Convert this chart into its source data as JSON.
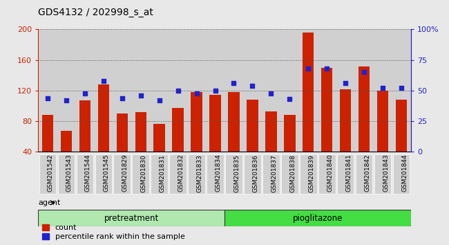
{
  "title": "GDS4132 / 202998_s_at",
  "samples": [
    "GSM201542",
    "GSM201543",
    "GSM201544",
    "GSM201545",
    "GSM201829",
    "GSM201830",
    "GSM201831",
    "GSM201832",
    "GSM201833",
    "GSM201834",
    "GSM201835",
    "GSM201836",
    "GSM201837",
    "GSM201838",
    "GSM201839",
    "GSM201840",
    "GSM201841",
    "GSM201842",
    "GSM201843",
    "GSM201844"
  ],
  "counts": [
    88,
    68,
    107,
    128,
    90,
    92,
    77,
    97,
    118,
    115,
    118,
    108,
    93,
    88,
    196,
    150,
    122,
    152,
    120,
    108
  ],
  "percentile": [
    44,
    42,
    48,
    58,
    44,
    46,
    42,
    50,
    48,
    50,
    56,
    54,
    48,
    43,
    68,
    68,
    56,
    65,
    52,
    52
  ],
  "pretreatment_count": 10,
  "pioglitazone_count": 10,
  "bar_color": "#cc2200",
  "dot_color": "#2222cc",
  "bg_color": "#e8e8e8",
  "plot_bg": "#ffffff",
  "col_bg": "#d0d0d0",
  "left_axis_color": "#cc2200",
  "right_axis_color": "#2222cc",
  "ylim_left": [
    40,
    200
  ],
  "ylim_right": [
    0,
    100
  ],
  "yticks_left": [
    40,
    80,
    120,
    160,
    200
  ],
  "yticks_right": [
    0,
    25,
    50,
    75,
    100
  ],
  "ytick_labels_right": [
    "0",
    "25",
    "50",
    "75",
    "100%"
  ],
  "pretreat_color": "#b0e8b0",
  "pioglit_color": "#44dd44",
  "legend_count_label": "count",
  "legend_pct_label": "percentile rank within the sample"
}
